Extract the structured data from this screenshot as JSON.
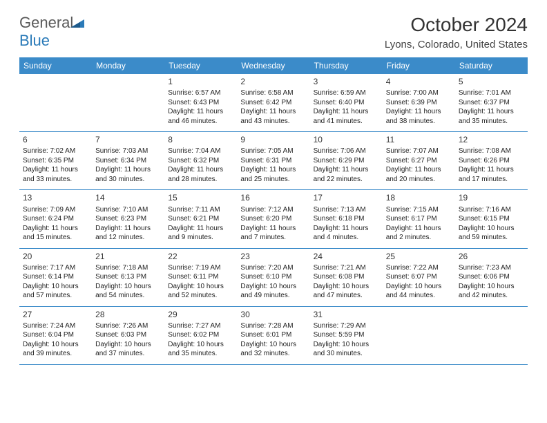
{
  "brand": {
    "part1": "General",
    "part2": "Blue"
  },
  "title": "October 2024",
  "location": "Lyons, Colorado, United States",
  "colors": {
    "header_bg": "#3b8bc9",
    "header_text": "#ffffff",
    "border": "#3b8bc9",
    "logo_gray": "#5a5a5a",
    "logo_blue": "#2a7ab8",
    "body_text": "#222222",
    "page_bg": "#ffffff"
  },
  "weekdays": [
    "Sunday",
    "Monday",
    "Tuesday",
    "Wednesday",
    "Thursday",
    "Friday",
    "Saturday"
  ],
  "weeks": [
    [
      null,
      null,
      {
        "d": "1",
        "sr": "6:57 AM",
        "ss": "6:43 PM",
        "dl": "11 hours and 46 minutes."
      },
      {
        "d": "2",
        "sr": "6:58 AM",
        "ss": "6:42 PM",
        "dl": "11 hours and 43 minutes."
      },
      {
        "d": "3",
        "sr": "6:59 AM",
        "ss": "6:40 PM",
        "dl": "11 hours and 41 minutes."
      },
      {
        "d": "4",
        "sr": "7:00 AM",
        "ss": "6:39 PM",
        "dl": "11 hours and 38 minutes."
      },
      {
        "d": "5",
        "sr": "7:01 AM",
        "ss": "6:37 PM",
        "dl": "11 hours and 35 minutes."
      }
    ],
    [
      {
        "d": "6",
        "sr": "7:02 AM",
        "ss": "6:35 PM",
        "dl": "11 hours and 33 minutes."
      },
      {
        "d": "7",
        "sr": "7:03 AM",
        "ss": "6:34 PM",
        "dl": "11 hours and 30 minutes."
      },
      {
        "d": "8",
        "sr": "7:04 AM",
        "ss": "6:32 PM",
        "dl": "11 hours and 28 minutes."
      },
      {
        "d": "9",
        "sr": "7:05 AM",
        "ss": "6:31 PM",
        "dl": "11 hours and 25 minutes."
      },
      {
        "d": "10",
        "sr": "7:06 AM",
        "ss": "6:29 PM",
        "dl": "11 hours and 22 minutes."
      },
      {
        "d": "11",
        "sr": "7:07 AM",
        "ss": "6:27 PM",
        "dl": "11 hours and 20 minutes."
      },
      {
        "d": "12",
        "sr": "7:08 AM",
        "ss": "6:26 PM",
        "dl": "11 hours and 17 minutes."
      }
    ],
    [
      {
        "d": "13",
        "sr": "7:09 AM",
        "ss": "6:24 PM",
        "dl": "11 hours and 15 minutes."
      },
      {
        "d": "14",
        "sr": "7:10 AM",
        "ss": "6:23 PM",
        "dl": "11 hours and 12 minutes."
      },
      {
        "d": "15",
        "sr": "7:11 AM",
        "ss": "6:21 PM",
        "dl": "11 hours and 9 minutes."
      },
      {
        "d": "16",
        "sr": "7:12 AM",
        "ss": "6:20 PM",
        "dl": "11 hours and 7 minutes."
      },
      {
        "d": "17",
        "sr": "7:13 AM",
        "ss": "6:18 PM",
        "dl": "11 hours and 4 minutes."
      },
      {
        "d": "18",
        "sr": "7:15 AM",
        "ss": "6:17 PM",
        "dl": "11 hours and 2 minutes."
      },
      {
        "d": "19",
        "sr": "7:16 AM",
        "ss": "6:15 PM",
        "dl": "10 hours and 59 minutes."
      }
    ],
    [
      {
        "d": "20",
        "sr": "7:17 AM",
        "ss": "6:14 PM",
        "dl": "10 hours and 57 minutes."
      },
      {
        "d": "21",
        "sr": "7:18 AM",
        "ss": "6:13 PM",
        "dl": "10 hours and 54 minutes."
      },
      {
        "d": "22",
        "sr": "7:19 AM",
        "ss": "6:11 PM",
        "dl": "10 hours and 52 minutes."
      },
      {
        "d": "23",
        "sr": "7:20 AM",
        "ss": "6:10 PM",
        "dl": "10 hours and 49 minutes."
      },
      {
        "d": "24",
        "sr": "7:21 AM",
        "ss": "6:08 PM",
        "dl": "10 hours and 47 minutes."
      },
      {
        "d": "25",
        "sr": "7:22 AM",
        "ss": "6:07 PM",
        "dl": "10 hours and 44 minutes."
      },
      {
        "d": "26",
        "sr": "7:23 AM",
        "ss": "6:06 PM",
        "dl": "10 hours and 42 minutes."
      }
    ],
    [
      {
        "d": "27",
        "sr": "7:24 AM",
        "ss": "6:04 PM",
        "dl": "10 hours and 39 minutes."
      },
      {
        "d": "28",
        "sr": "7:26 AM",
        "ss": "6:03 PM",
        "dl": "10 hours and 37 minutes."
      },
      {
        "d": "29",
        "sr": "7:27 AM",
        "ss": "6:02 PM",
        "dl": "10 hours and 35 minutes."
      },
      {
        "d": "30",
        "sr": "7:28 AM",
        "ss": "6:01 PM",
        "dl": "10 hours and 32 minutes."
      },
      {
        "d": "31",
        "sr": "7:29 AM",
        "ss": "5:59 PM",
        "dl": "10 hours and 30 minutes."
      },
      null,
      null
    ]
  ],
  "labels": {
    "sunrise": "Sunrise: ",
    "sunset": "Sunset: ",
    "daylight": "Daylight: "
  }
}
